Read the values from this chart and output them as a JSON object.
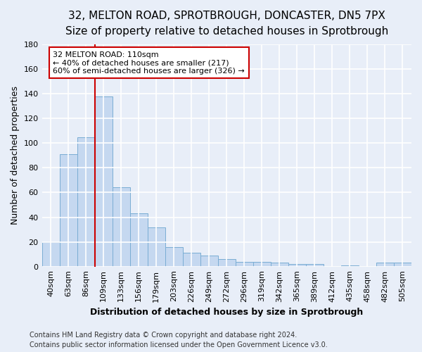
{
  "title1": "32, MELTON ROAD, SPROTBROUGH, DONCASTER, DN5 7PX",
  "title2": "Size of property relative to detached houses in Sprotbrough",
  "xlabel": "Distribution of detached houses by size in Sprotbrough",
  "ylabel": "Number of detached properties",
  "categories": [
    "40sqm",
    "63sqm",
    "86sqm",
    "109sqm",
    "133sqm",
    "156sqm",
    "179sqm",
    "203sqm",
    "226sqm",
    "249sqm",
    "272sqm",
    "296sqm",
    "319sqm",
    "342sqm",
    "365sqm",
    "389sqm",
    "412sqm",
    "435sqm",
    "458sqm",
    "482sqm",
    "505sqm"
  ],
  "values": [
    20,
    91,
    105,
    138,
    64,
    43,
    32,
    16,
    11,
    9,
    6,
    4,
    4,
    3,
    2,
    2,
    0,
    1,
    0,
    3,
    3
  ],
  "bar_color": "#c5d8f0",
  "bar_edge_color": "#7aadd4",
  "highlight_bar_idx": 3,
  "highlight_color": "#cc0000",
  "annotation_line1": "32 MELTON ROAD: 110sqm",
  "annotation_line2": "← 40% of detached houses are smaller (217)",
  "annotation_line3": "60% of semi-detached houses are larger (326) →",
  "annotation_box_color": "#ffffff",
  "annotation_box_edge": "#cc0000",
  "ylim": [
    0,
    180
  ],
  "yticks": [
    0,
    20,
    40,
    60,
    80,
    100,
    120,
    140,
    160,
    180
  ],
  "footnote1": "Contains HM Land Registry data © Crown copyright and database right 2024.",
  "footnote2": "Contains public sector information licensed under the Open Government Licence v3.0.",
  "bg_color": "#e8eef8",
  "plot_bg_color": "#e8eef8",
  "grid_color": "#ffffff",
  "title_fontsize": 11,
  "subtitle_fontsize": 9.5,
  "axis_label_fontsize": 9,
  "tick_fontsize": 8,
  "footnote_fontsize": 7
}
